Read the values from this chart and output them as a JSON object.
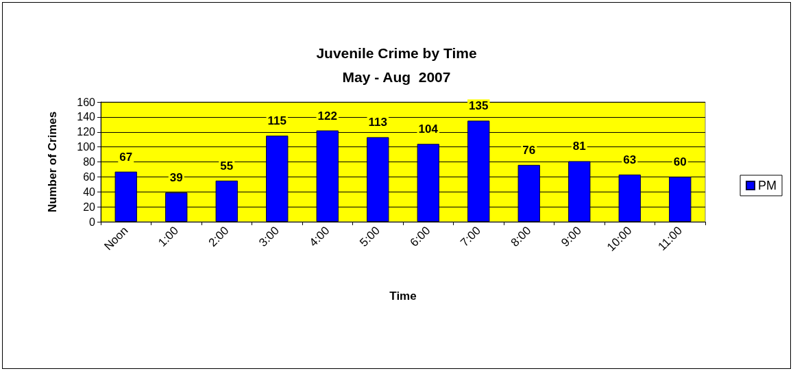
{
  "chart_data": {
    "type": "bar",
    "title": "Juvenile Crime by Time",
    "subtitle": "May - Aug  2007",
    "xlabel": "Time",
    "ylabel": "Number of Crimes",
    "categories": [
      "Noon",
      "1:00",
      "2:00",
      "3:00",
      "4:00",
      "5:00",
      "6:00",
      "7:00",
      "8:00",
      "9:00",
      "10:00",
      "11:00"
    ],
    "series": [
      {
        "name": "PM",
        "color": "#0000ff",
        "values": [
          67,
          39,
          55,
          115,
          122,
          113,
          104,
          135,
          76,
          81,
          63,
          60
        ]
      }
    ],
    "ylim": [
      0,
      160
    ],
    "yticks": [
      0,
      20,
      40,
      60,
      80,
      100,
      120,
      140,
      160
    ],
    "grid": "y",
    "legend": "right",
    "data_labels": true
  }
}
